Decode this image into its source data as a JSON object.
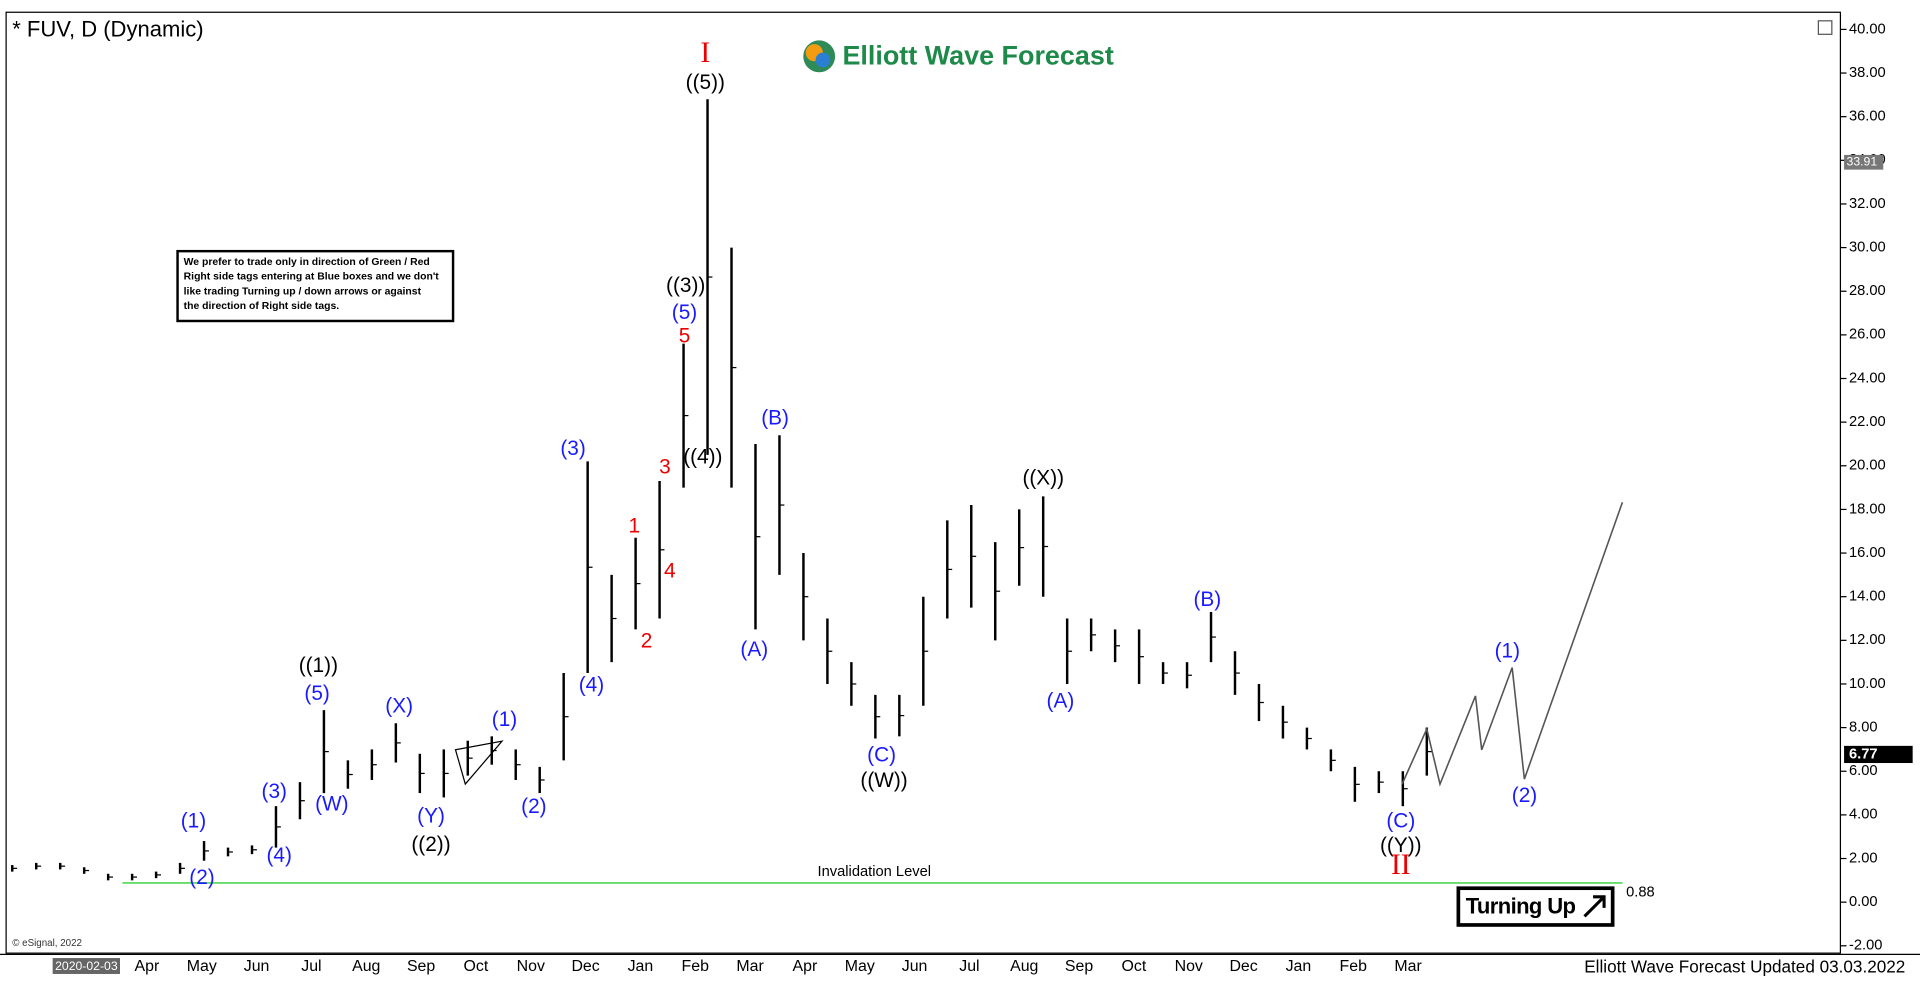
{
  "chart_data": {
    "type": "ohlc",
    "title": "* FUV, D (Dynamic)",
    "logo": "Elliott Wave Forecast",
    "footer": "Elliott Wave Forecast Updated 03.03.2022",
    "copyright": "© eSignal, 2022",
    "start_date": "2020-02-03",
    "note": [
      "We prefer to trade only in direction of Green / Red",
      "Right side tags entering at Blue boxes and we don't",
      "like trading Turning up / down arrows or against",
      "the direction of Right side tags."
    ],
    "badge": "Turning Up",
    "categories": [
      "Apr",
      "May",
      "Jun",
      "Jul",
      "Aug",
      "Sep",
      "Oct",
      "Nov",
      "Dec",
      "Jan",
      "Feb",
      "Mar",
      "Apr",
      "May",
      "Jun",
      "Jul",
      "Aug",
      "Sep",
      "Oct",
      "Nov",
      "Dec",
      "Jan",
      "Feb",
      "Mar"
    ],
    "bars": {
      "color": "#000000",
      "high": [
        1.7,
        1.8,
        1.8,
        1.6,
        1.3,
        1.3,
        1.4,
        1.8,
        2.8,
        2.5,
        2.6,
        4.4,
        5.5,
        8.8,
        6.5,
        7.0,
        8.2,
        6.8,
        7.0,
        7.4,
        7.6,
        7.0,
        6.2,
        10.5,
        20.2,
        15.0,
        16.7,
        19.3,
        25.6,
        36.8,
        30.0,
        21.0,
        21.4,
        16.0,
        13.0,
        11.0,
        9.5,
        9.5,
        14.0,
        17.5,
        18.2,
        16.5,
        18.0,
        18.6,
        13.0,
        13.0,
        12.5,
        12.5,
        11.0,
        11.0,
        13.3,
        11.5,
        10.0,
        9.0,
        8.0,
        7.0,
        6.2,
        6.0,
        6.0,
        8.0
      ],
      "low": [
        1.4,
        1.5,
        1.5,
        1.3,
        1.0,
        1.0,
        1.1,
        1.3,
        1.9,
        2.1,
        2.2,
        2.5,
        3.8,
        5.0,
        5.2,
        5.6,
        6.4,
        5.0,
        4.8,
        5.8,
        6.3,
        5.6,
        5.0,
        6.5,
        10.5,
        11.0,
        12.5,
        13.0,
        19.0,
        20.5,
        19.0,
        12.5,
        15.0,
        12.0,
        10.0,
        9.0,
        7.5,
        7.6,
        9.0,
        13.0,
        13.5,
        12.0,
        14.5,
        14.0,
        10.0,
        11.5,
        11.0,
        10.0,
        10.0,
        9.8,
        11.0,
        9.5,
        8.3,
        7.5,
        7.0,
        6.0,
        4.6,
        5.0,
        4.4,
        5.8
      ]
    },
    "projection": {
      "color": "#555555",
      "x": [
        57.97,
        59.0,
        59.55,
        61.03,
        61.29,
        62.56,
        63.07,
        67.16
      ],
      "values": [
        5.41,
        7.94,
        5.41,
        9.45,
        6.98,
        10.75,
        5.64,
        18.33
      ]
    },
    "invalidation": {
      "label": "Invalidation Level",
      "value": 0.88,
      "color": "#66dd66"
    },
    "last_price": 6.77,
    "marker_price": 33.91,
    "wave_labels": [
      {
        "text": "((1))",
        "color": "#000000"
      },
      {
        "text": "((2))",
        "color": "#000000"
      },
      {
        "text": "((3))",
        "color": "#000000"
      },
      {
        "text": "((4))",
        "color": "#000000"
      },
      {
        "text": "((5))",
        "color": "#000000"
      },
      {
        "text": "((W))",
        "color": "#000000"
      },
      {
        "text": "((X))",
        "color": "#000000"
      },
      {
        "text": "((Y))",
        "color": "#000000"
      },
      {
        "text": "(1)",
        "color": "#1a1aff"
      },
      {
        "text": "(2)",
        "color": "#1a1aff"
      },
      {
        "text": "(3)",
        "color": "#1a1aff"
      },
      {
        "text": "(4)",
        "color": "#1a1aff"
      },
      {
        "text": "(5)",
        "color": "#1a1aff"
      },
      {
        "text": "(W)",
        "color": "#1a1aff"
      },
      {
        "text": "(X)",
        "color": "#1a1aff"
      },
      {
        "text": "(Y)",
        "color": "#1a1aff"
      },
      {
        "text": "(1)",
        "color": "#1a1aff"
      },
      {
        "text": "(2)",
        "color": "#1a1aff"
      },
      {
        "text": "(3)",
        "color": "#1a1aff"
      },
      {
        "text": "(4)",
        "color": "#1a1aff"
      },
      {
        "text": "(5)",
        "color": "#1a1aff"
      },
      {
        "text": "(A)",
        "color": "#1a1aff"
      },
      {
        "text": "(B)",
        "color": "#1a1aff"
      },
      {
        "text": "(C)",
        "color": "#1a1aff"
      },
      {
        "text": "(A)",
        "color": "#1a1aff"
      },
      {
        "text": "(B)",
        "color": "#1a1aff"
      },
      {
        "text": "(C)",
        "color": "#1a1aff"
      },
      {
        "text": "(1)",
        "color": "#1a1aff"
      },
      {
        "text": "(2)",
        "color": "#1a1aff"
      },
      {
        "text": "1",
        "color": "#ee0000"
      },
      {
        "text": "2",
        "color": "#ee0000"
      },
      {
        "text": "3",
        "color": "#ee0000"
      },
      {
        "text": "4",
        "color": "#ee0000"
      },
      {
        "text": "5",
        "color": "#ee0000"
      },
      {
        "text": "I",
        "color": "#ee0000"
      },
      {
        "text": "II",
        "color": "#ee0000"
      }
    ],
    "ylim": [
      -2,
      40
    ],
    "yticks": [
      {
        "value": -2,
        "label": "-2.00"
      },
      {
        "value": 0,
        "label": "0.00"
      },
      {
        "value": 2,
        "label": "2.00"
      },
      {
        "value": 4,
        "label": "4.00"
      },
      {
        "value": 6,
        "label": "6.00"
      },
      {
        "value": 8,
        "label": "8.00"
      },
      {
        "value": 10,
        "label": "10.00"
      },
      {
        "value": 12,
        "label": "12.00"
      },
      {
        "value": 14,
        "label": "14.00"
      },
      {
        "value": 16,
        "label": "16.00"
      },
      {
        "value": 18,
        "label": "18.00"
      },
      {
        "value": 20,
        "label": "20.00"
      },
      {
        "value": 22,
        "label": "22.00"
      },
      {
        "value": 24,
        "label": "24.00"
      },
      {
        "value": 26,
        "label": "26.00"
      },
      {
        "value": 28,
        "label": "28.00"
      },
      {
        "value": 30,
        "label": "30.00"
      },
      {
        "value": 32,
        "label": "32.00"
      },
      {
        "value": 34,
        "label": "34.00"
      },
      {
        "value": 36,
        "label": "36.00"
      },
      {
        "value": 38,
        "label": "38.00"
      },
      {
        "value": 40,
        "label": "40.00"
      }
    ]
  }
}
